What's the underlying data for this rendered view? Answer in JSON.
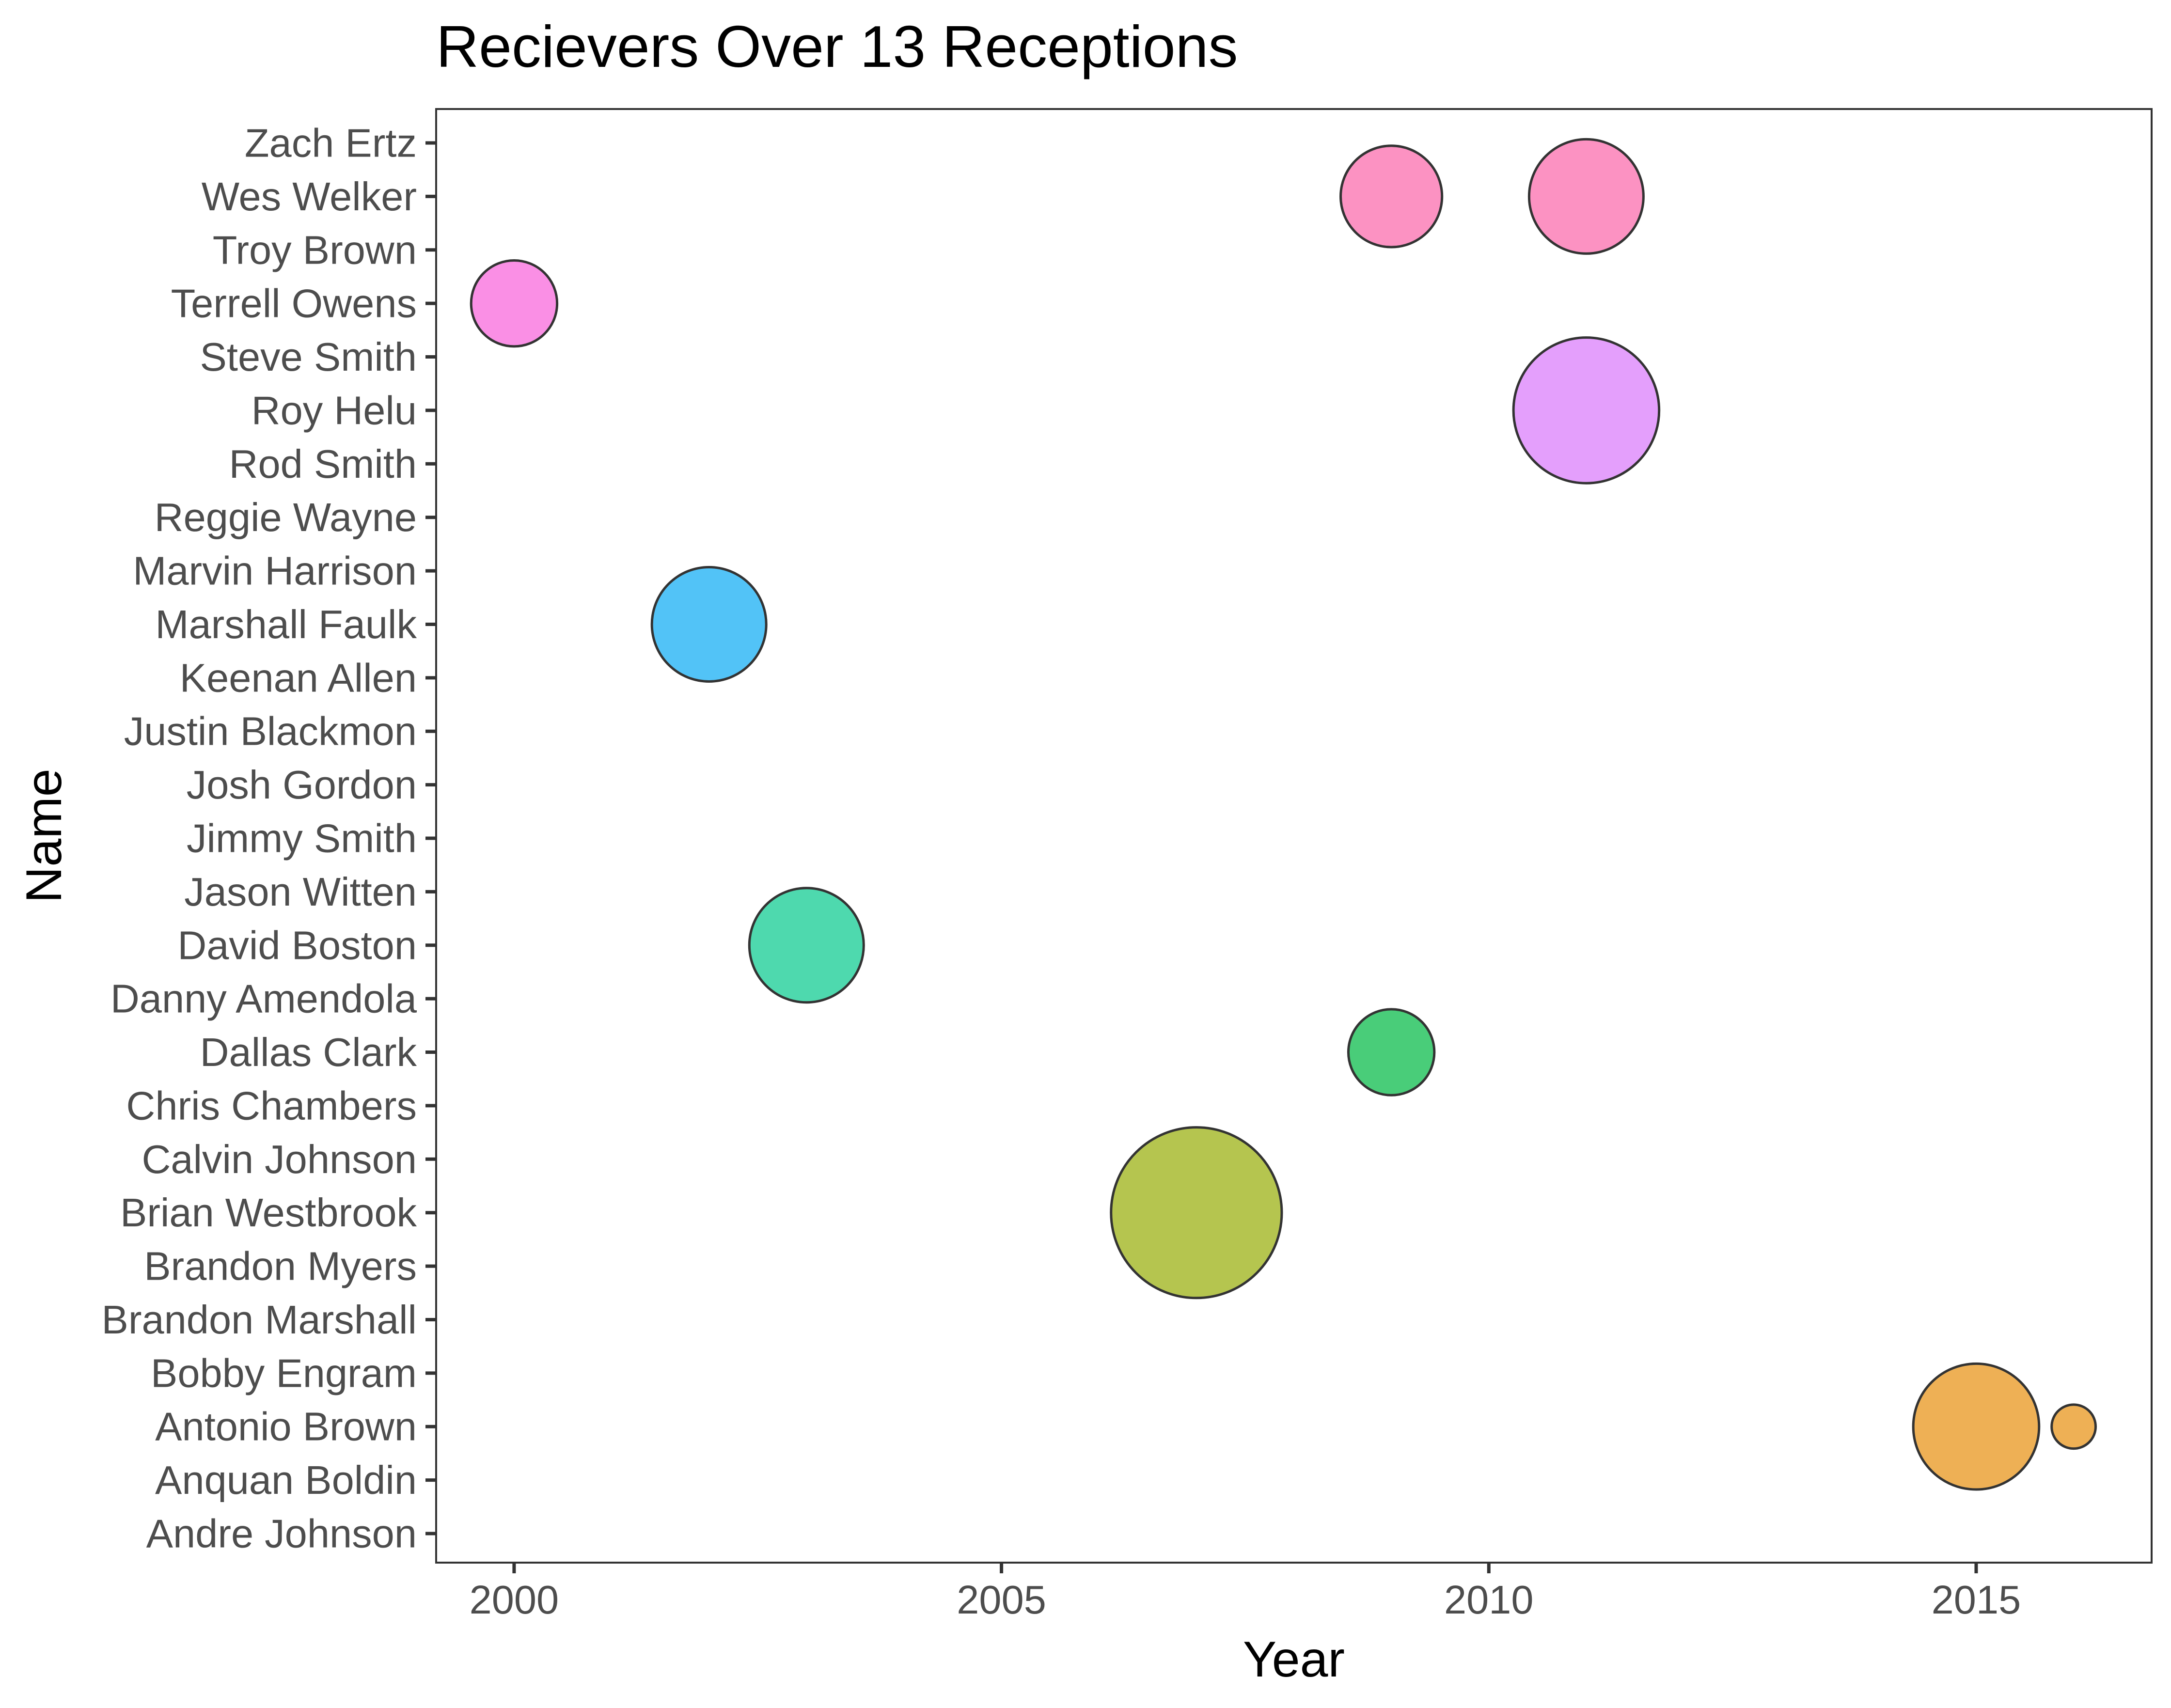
{
  "chart_data": {
    "type": "scatter",
    "title": "Recievers Over 13 Receptions",
    "xlabel": "Year",
    "ylabel": "Name",
    "xlim": [
      1999.2,
      2016.8
    ],
    "x_ticks": [
      2000,
      2005,
      2010,
      2015
    ],
    "x_tick_labels": [
      "2000",
      "2005",
      "2010",
      "2015"
    ],
    "categories": [
      "Andre Johnson",
      "Anquan Boldin",
      "Antonio Brown",
      "Bobby Engram",
      "Brandon Marshall",
      "Brandon Myers",
      "Brian Westbrook",
      "Calvin Johnson",
      "Chris Chambers",
      "Dallas Clark",
      "Danny Amendola",
      "David Boston",
      "Jason Witten",
      "Jimmy Smith",
      "Josh Gordon",
      "Justin Blackmon",
      "Keenan Allen",
      "Marshall Faulk",
      "Marvin Harrison",
      "Reggie Wayne",
      "Rod Smith",
      "Roy Helu",
      "Steve Smith",
      "Terrell Owens",
      "Troy Brown",
      "Wes Welker",
      "Zach Ertz"
    ],
    "grid": false,
    "legend": "none",
    "points": [
      {
        "name": "Terrell Owens",
        "x": 2000,
        "size": 2,
        "color": "#f97be0"
      },
      {
        "name": "Marshall Faulk",
        "x": 2002,
        "size": 4,
        "color": "#34b8f6"
      },
      {
        "name": "David Boston",
        "x": 2003,
        "size": 4,
        "color": "#2fd2a0"
      },
      {
        "name": "Brian Westbrook",
        "x": 2007,
        "size": 10,
        "color": "#a8bb30"
      },
      {
        "name": "Wes Welker",
        "x": 2009,
        "size": 3,
        "color": "#fc7fb7"
      },
      {
        "name": "Dallas Clark",
        "x": 2009,
        "size": 2,
        "color": "#29c462"
      },
      {
        "name": "Wes Welker",
        "x": 2011,
        "size": 4,
        "color": "#fc7fb7"
      },
      {
        "name": "Roy Helu",
        "x": 2011,
        "size": 7,
        "color": "#df8efc"
      },
      {
        "name": "Antonio Brown",
        "x": 2015,
        "size": 5,
        "color": "#eba237"
      },
      {
        "name": "Antonio Brown",
        "x": 2016,
        "size": 0.3,
        "color": "#eba237"
      }
    ]
  }
}
